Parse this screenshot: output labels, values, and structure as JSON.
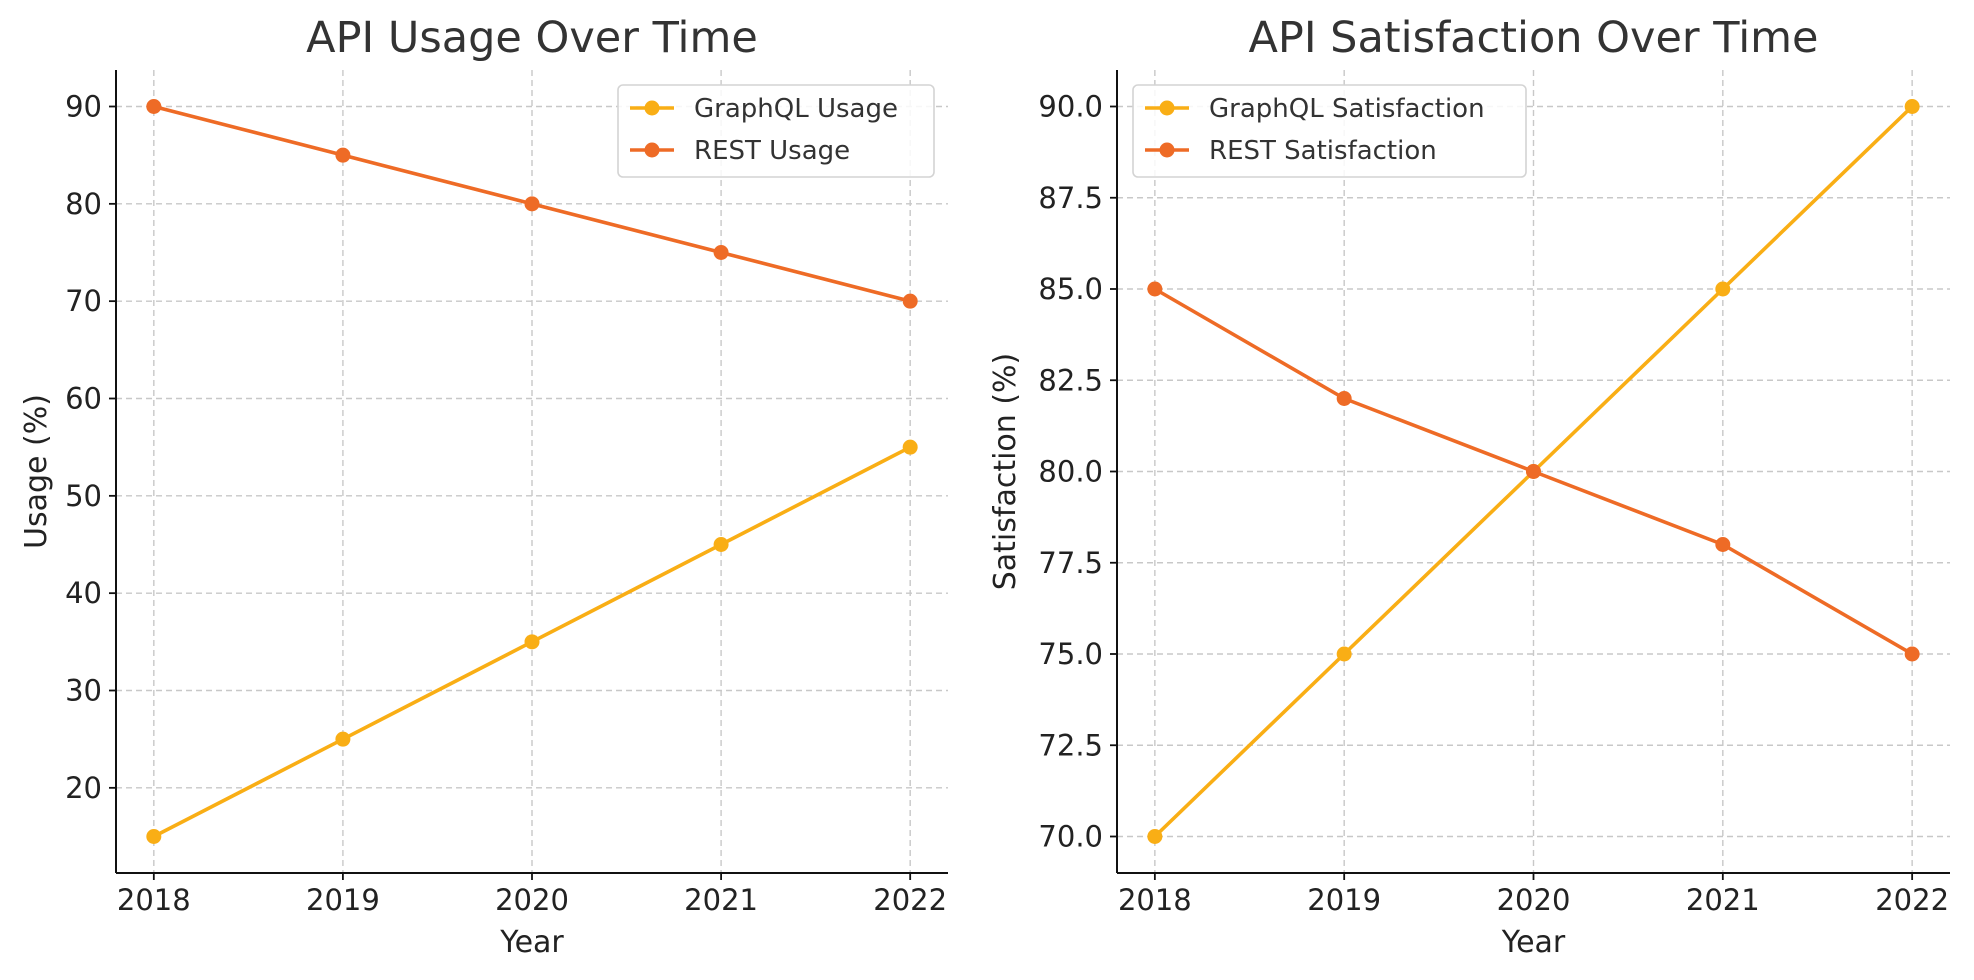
{
  "chart_data": [
    {
      "type": "line",
      "title": "API Usage Over Time",
      "xlabel": "Year",
      "ylabel": "Usage (%)",
      "x": [
        2018,
        2019,
        2020,
        2021,
        2022
      ],
      "xticks": [
        "2018",
        "2019",
        "2020",
        "2021",
        "2022"
      ],
      "ylim": [
        11.25,
        93.75
      ],
      "yticks": [
        20,
        30,
        40,
        50,
        60,
        70,
        80,
        90
      ],
      "ytick_decimals": 0,
      "grid": true,
      "legend_position": "top-right",
      "series": [
        {
          "name": "GraphQL Usage",
          "values": [
            15,
            25,
            35,
            45,
            55
          ],
          "color": "#F9AE15"
        },
        {
          "name": "REST Usage",
          "values": [
            90,
            85,
            80,
            75,
            70
          ],
          "color": "#EE6B26"
        }
      ]
    },
    {
      "type": "line",
      "title": "API Satisfaction Over Time",
      "xlabel": "Year",
      "ylabel": "Satisfaction (%)",
      "x": [
        2018,
        2019,
        2020,
        2021,
        2022
      ],
      "xticks": [
        "2018",
        "2019",
        "2020",
        "2021",
        "2022"
      ],
      "ylim": [
        69.0,
        91.0
      ],
      "yticks": [
        70.0,
        72.5,
        75.0,
        77.5,
        80.0,
        82.5,
        85.0,
        87.5,
        90.0
      ],
      "ytick_decimals": 1,
      "grid": true,
      "legend_position": "top-left",
      "series": [
        {
          "name": "GraphQL Satisfaction",
          "values": [
            70,
            75,
            80,
            85,
            90
          ],
          "color": "#F9AE15"
        },
        {
          "name": "REST Satisfaction",
          "values": [
            85,
            82,
            80,
            78,
            75
          ],
          "color": "#EE6B26"
        }
      ]
    }
  ]
}
